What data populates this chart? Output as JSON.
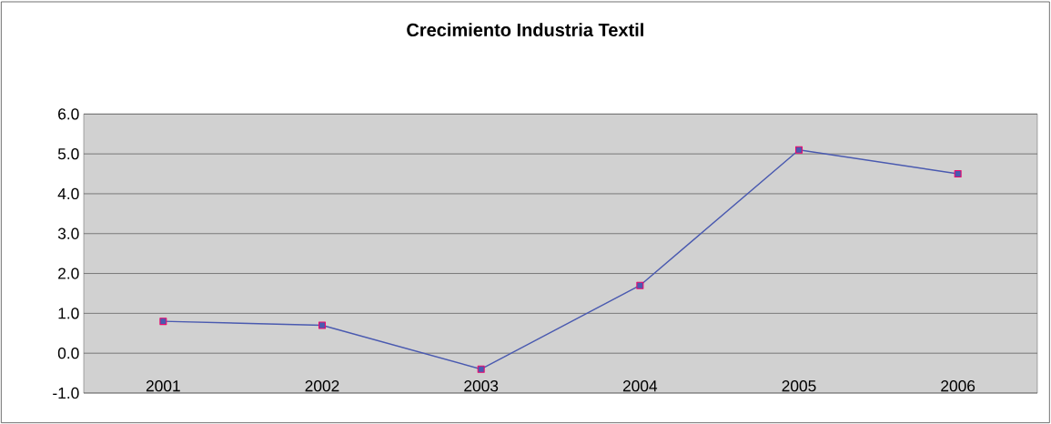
{
  "chart_data": {
    "type": "line",
    "title": "Crecimiento Industria Textil",
    "categories": [
      "2001",
      "2002",
      "2003",
      "2004",
      "2005",
      "2006"
    ],
    "series": [
      {
        "color": "#4a5ab0",
        "values": [
          0.8,
          0.7,
          -0.4,
          1.7,
          5.1,
          4.5
        ]
      }
    ],
    "ylim": [
      -1.0,
      6.0
    ],
    "yticks": [
      {
        "value": -1,
        "label": "-1.0"
      },
      {
        "value": 0,
        "label": "0.0"
      },
      {
        "value": 1,
        "label": "1.0"
      },
      {
        "value": 2,
        "label": "2.0"
      },
      {
        "value": 3,
        "label": "3.0"
      },
      {
        "value": 4,
        "label": "4.0"
      },
      {
        "value": 5,
        "label": "5.0"
      },
      {
        "value": 6,
        "label": "6.0"
      }
    ],
    "grid": "y",
    "marker": "square"
  }
}
